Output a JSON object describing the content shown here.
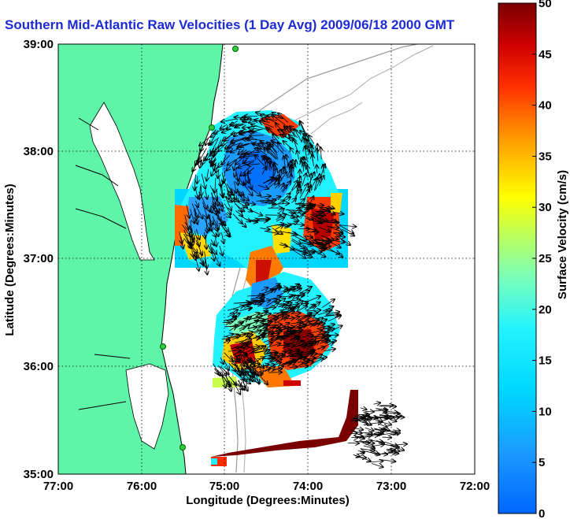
{
  "title": "Southern Mid-Atlantic Raw Velocities (1 Day Avg) 2009/06/18 2000 GMT",
  "map": {
    "xlabel": "Longitude (Degrees:Minutes)",
    "ylabel": "Latitude (Degrees:Minutes)",
    "x_ticks": [
      "77:00",
      "76:00",
      "75:00",
      "74:00",
      "73:00",
      "72:00"
    ],
    "y_ticks": [
      "39:00",
      "38:00",
      "37:00",
      "36:00",
      "35:00"
    ],
    "lon_range": [
      -77,
      -72
    ],
    "lat_range": [
      35,
      39
    ],
    "land_color": "#5ff5a8",
    "grid": "dotted"
  },
  "colorbar": {
    "label": "Surface Velocity (cm/s)",
    "ticks": [
      "0",
      "5",
      "10",
      "15",
      "20",
      "25",
      "30",
      "35",
      "40",
      "45",
      "50"
    ],
    "range": [
      0,
      50
    ],
    "colormap": "jet"
  }
}
